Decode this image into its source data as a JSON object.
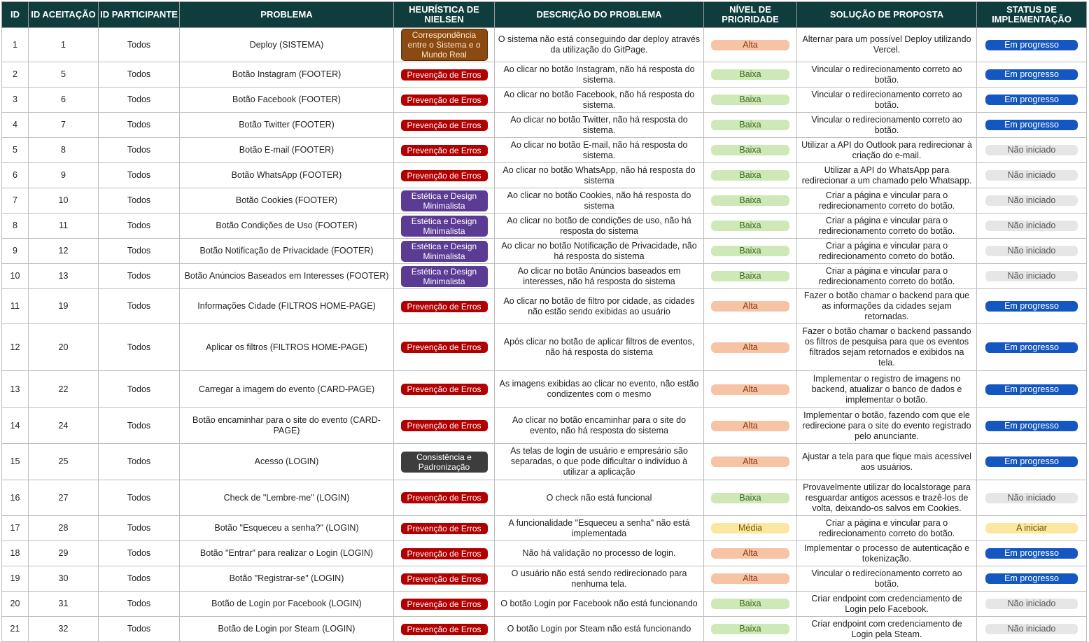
{
  "headers": {
    "id": "ID",
    "id_aceitacao": "ID ACEITAÇÃO",
    "id_participante": "ID PARTICIPANTE",
    "problema": "PROBLEMA",
    "heuristica": "HEURÍSTICA DE NIELSEN",
    "descricao": "DESCRIÇÃO DO PROBLEMA",
    "prioridade": "NÍVEL DE PRIORIDADE",
    "solucao": "SOLUÇÃO DE PROPOSTA",
    "status": "STATUS DE IMPLEMENTAÇÃO"
  },
  "colors": {
    "header_bg": "#0f3d3e",
    "heuristica_prevencao": "#b20000",
    "heuristica_estetica": "#5b3b94",
    "heuristica_mundo_real": "#8a4a12",
    "heuristica_consistencia": "#3d3d3d",
    "prioridade_alta": "#f7c3a5",
    "prioridade_baixa": "#cfe8b8",
    "prioridade_media": "#fbe7a0",
    "status_em_progresso": "#1457c0",
    "status_nao_iniciado": "#e6e6e6",
    "status_a_iniciar": "#fbe7a0"
  },
  "rows": [
    {
      "id": "1",
      "aceitacao": "1",
      "participante": "Todos",
      "problema": "Deploy (SISTEMA)",
      "heuristica": "Correspondência entre o Sistema e o Mundo Real",
      "heuristica_tipo": "mundo",
      "descricao": "O sistema não está conseguindo dar deploy através da utilização do GitPage.",
      "prioridade": "Alta",
      "prioridade_tipo": "alta",
      "solucao": "Alternar para um possível Deploy utilizando Vercel.",
      "status": "Em progresso",
      "status_tipo": "prog"
    },
    {
      "id": "2",
      "aceitacao": "5",
      "participante": "Todos",
      "problema": "Botão Instagram (FOOTER)",
      "heuristica": "Prevenção de Erros",
      "heuristica_tipo": "erro",
      "descricao": "Ao clicar no botão Instagram, não há resposta do sistema.",
      "prioridade": "Baixa",
      "prioridade_tipo": "baixa",
      "solucao": "Vincular o redirecionamento correto ao botão.",
      "status": "Em progresso",
      "status_tipo": "prog"
    },
    {
      "id": "3",
      "aceitacao": "6",
      "participante": "Todos",
      "problema": "Botão Facebook (FOOTER)",
      "heuristica": "Prevenção de Erros",
      "heuristica_tipo": "erro",
      "descricao": "Ao clicar no botão Facebook, não há resposta do sistema.",
      "prioridade": "Baixa",
      "prioridade_tipo": "baixa",
      "solucao": "Vincular o redirecionamento correto ao botão.",
      "status": "Em progresso",
      "status_tipo": "prog"
    },
    {
      "id": "4",
      "aceitacao": "7",
      "participante": "Todos",
      "problema": "Botão Twitter (FOOTER)",
      "heuristica": "Prevenção de Erros",
      "heuristica_tipo": "erro",
      "descricao": "Ao clicar no botão Twitter, não há resposta do sistema.",
      "prioridade": "Baixa",
      "prioridade_tipo": "baixa",
      "solucao": "Vincular o redirecionamento correto ao botão.",
      "status": "Em progresso",
      "status_tipo": "prog"
    },
    {
      "id": "5",
      "aceitacao": "8",
      "participante": "Todos",
      "problema": "Botão E-mail (FOOTER)",
      "heuristica": "Prevenção de Erros",
      "heuristica_tipo": "erro",
      "descricao": "Ao clicar no botão E-mail, não há resposta do sistema.",
      "prioridade": "Baixa",
      "prioridade_tipo": "baixa",
      "solucao": "Utilizar a API do Outlook para redirecionar à criação do e-mail.",
      "status": "Não iniciado",
      "status_tipo": "nao"
    },
    {
      "id": "6",
      "aceitacao": "9",
      "participante": "Todos",
      "problema": "Botão WhatsApp (FOOTER)",
      "heuristica": "Prevenção de Erros",
      "heuristica_tipo": "erro",
      "descricao": "Ao clicar no botão WhatsApp, não há resposta do sistema",
      "prioridade": "Baixa",
      "prioridade_tipo": "baixa",
      "solucao": "Utilizar a API do WhatsApp para redirecionar a um chamado pelo Whatsapp.",
      "status": "Não iniciado",
      "status_tipo": "nao"
    },
    {
      "id": "7",
      "aceitacao": "10",
      "participante": "Todos",
      "problema": "Botão Cookies (FOOTER)",
      "heuristica": "Estética e Design Minimalista",
      "heuristica_tipo": "estetica",
      "descricao": "Ao clicar no botão Cookies, não há resposta do sistema",
      "prioridade": "Baixa",
      "prioridade_tipo": "baixa",
      "solucao": "Criar a página e vincular para o redirecionamento correto do botão.",
      "status": "Não iniciado",
      "status_tipo": "nao"
    },
    {
      "id": "8",
      "aceitacao": "11",
      "participante": "Todos",
      "problema": "Botão Condições de Uso (FOOTER)",
      "heuristica": "Estética e Design Minimalista",
      "heuristica_tipo": "estetica",
      "descricao": "Ao clicar no botão de condições de uso, não há resposta do sistema",
      "prioridade": "Baixa",
      "prioridade_tipo": "baixa",
      "solucao": "Criar a página e vincular para o redirecionamento correto do botão.",
      "status": "Não iniciado",
      "status_tipo": "nao"
    },
    {
      "id": "9",
      "aceitacao": "12",
      "participante": "Todos",
      "problema": "Botão Notificação de Privacidade (FOOTER)",
      "heuristica": "Estética e Design Minimalista",
      "heuristica_tipo": "estetica",
      "descricao": "Ao clicar no botão Notificação de Privacidade, não há resposta do sistema",
      "prioridade": "Baixa",
      "prioridade_tipo": "baixa",
      "solucao": "Criar a página e vincular para o redirecionamento correto do botão.",
      "status": "Não iniciado",
      "status_tipo": "nao"
    },
    {
      "id": "10",
      "aceitacao": "13",
      "participante": "Todos",
      "problema": "Botão Anúncios Baseados em Interesses (FOOTER)",
      "heuristica": "Estética e Design Minimalista",
      "heuristica_tipo": "estetica",
      "descricao": "Ao clicar no botão Anúncios baseados em interesses, não há resposta do sistema",
      "prioridade": "Baixa",
      "prioridade_tipo": "baixa",
      "solucao": "Criar a página e vincular para o redirecionamento correto do botão.",
      "status": "Não iniciado",
      "status_tipo": "nao"
    },
    {
      "id": "11",
      "aceitacao": "19",
      "participante": "Todos",
      "problema": "Informações Cidade (FILTROS HOME-PAGE)",
      "heuristica": "Prevenção de Erros",
      "heuristica_tipo": "erro",
      "descricao": "Ao clicar no botão de filtro por cidade, as cidades não estão sendo exibidas ao usuário",
      "prioridade": "Alta",
      "prioridade_tipo": "alta",
      "solucao": "Fazer o botão chamar o backend para que as informações da cidades sejam retornadas.",
      "status": "Em progresso",
      "status_tipo": "prog"
    },
    {
      "id": "12",
      "aceitacao": "20",
      "participante": "Todos",
      "problema": "Aplicar os filtros (FILTROS HOME-PAGE)",
      "heuristica": "Prevenção de Erros",
      "heuristica_tipo": "erro",
      "descricao": "Após clicar no botão de aplicar filtros de eventos, não há resposta do sistema",
      "prioridade": "Alta",
      "prioridade_tipo": "alta",
      "solucao": "Fazer o botão chamar o backend passando os filtros de pesquisa para que os eventos filtrados sejam retornados e exibidos na tela.",
      "status": "Em progresso",
      "status_tipo": "prog"
    },
    {
      "id": "13",
      "aceitacao": "22",
      "participante": "Todos",
      "problema": "Carregar a imagem do evento (CARD-PAGE)",
      "heuristica": "Prevenção de Erros",
      "heuristica_tipo": "erro",
      "descricao": "As imagens exibidas ao clicar no evento, não estão condizentes com o mesmo",
      "prioridade": "Alta",
      "prioridade_tipo": "alta",
      "solucao": "Implementar o registro de imagens no backend, atualizar o banco de dados e implementar o botão.",
      "status": "Em progresso",
      "status_tipo": "prog"
    },
    {
      "id": "14",
      "aceitacao": "24",
      "participante": "Todos",
      "problema": "Botão encaminhar para o site do evento (CARD-PAGE)",
      "heuristica": "Prevenção de Erros",
      "heuristica_tipo": "erro",
      "descricao": "Ao clicar no botão encaminhar para o site do evento, não há resposta do sistema",
      "prioridade": "Alta",
      "prioridade_tipo": "alta",
      "solucao": "Implementar o botão, fazendo com que ele redirecione para o site do evento registrado pelo anunciante.",
      "status": "Em progresso",
      "status_tipo": "prog"
    },
    {
      "id": "15",
      "aceitacao": "25",
      "participante": "Todos",
      "problema": "Acesso (LOGIN)",
      "heuristica": "Consistência e Padronização",
      "heuristica_tipo": "consist",
      "descricao": "As telas de login de usuário e empresário são separadas, o que pode dificultar o indivíduo à utilizar a aplicação",
      "prioridade": "Alta",
      "prioridade_tipo": "alta",
      "solucao": "Ajustar a tela para que fique mais acessível aos usuários.",
      "status": "Em progresso",
      "status_tipo": "prog"
    },
    {
      "id": "16",
      "aceitacao": "27",
      "participante": "Todos",
      "problema": "Check de \"Lembre-me\" (LOGIN)",
      "heuristica": "Prevenção de Erros",
      "heuristica_tipo": "erro",
      "descricao": "O check não está funcional",
      "prioridade": "Baixa",
      "prioridade_tipo": "baixa",
      "solucao": "Provavelmente utilizar do localstorage para resguardar antigos acessos e trazê-los de volta, deixando-os salvos em Cookies.",
      "status": "Não iniciado",
      "status_tipo": "nao"
    },
    {
      "id": "17",
      "aceitacao": "28",
      "participante": "Todos",
      "problema": "Botão \"Esqueceu a senha?\" (LOGIN)",
      "heuristica": "Prevenção de Erros",
      "heuristica_tipo": "erro",
      "descricao": "A funcionalidade \"Esqueceu a senha\" não está implementada",
      "prioridade": "Média",
      "prioridade_tipo": "media",
      "solucao": "Criar a página e vincular para o redirecionamento correto do botão.",
      "status": "A iniciar",
      "status_tipo": "ini"
    },
    {
      "id": "18",
      "aceitacao": "29",
      "participante": "Todos",
      "problema": "Botão \"Entrar\" para realizar o Login (LOGIN)",
      "heuristica": "Prevenção de Erros",
      "heuristica_tipo": "erro",
      "descricao": "Não há validação no processo de login.",
      "prioridade": "Alta",
      "prioridade_tipo": "alta",
      "solucao": "Implementar o processo de autenticação e tokenização.",
      "status": "Em progresso",
      "status_tipo": "prog"
    },
    {
      "id": "19",
      "aceitacao": "30",
      "participante": "Todos",
      "problema": "Botão \"Registrar-se\" (LOGIN)",
      "heuristica": "Prevenção de Erros",
      "heuristica_tipo": "erro",
      "descricao": "O usuário não está sendo redirecionado para nenhuma tela.",
      "prioridade": "Alta",
      "prioridade_tipo": "alta",
      "solucao": "Vincular o redirecionamento correto ao botão.",
      "status": "Em progresso",
      "status_tipo": "prog"
    },
    {
      "id": "20",
      "aceitacao": "31",
      "participante": "Todos",
      "problema": "Botão de Login por Facebook (LOGIN)",
      "heuristica": "Prevenção de Erros",
      "heuristica_tipo": "erro",
      "descricao": "O botão Login por Facebook não está funcionando",
      "prioridade": "Baixa",
      "prioridade_tipo": "baixa",
      "solucao": "Criar endpoint com credenciamento de Login pelo Facebook.",
      "status": "Não iniciado",
      "status_tipo": "nao"
    },
    {
      "id": "21",
      "aceitacao": "32",
      "participante": "Todos",
      "problema": "Botão de Login por Steam (LOGIN)",
      "heuristica": "Prevenção de Erros",
      "heuristica_tipo": "erro",
      "descricao": "O botão Login por Steam não está funcionando",
      "prioridade": "Baixa",
      "prioridade_tipo": "baixa",
      "solucao": "Criar endpoint com credenciamento de Login pela Steam.",
      "status": "Não iniciado",
      "status_tipo": "nao"
    }
  ]
}
